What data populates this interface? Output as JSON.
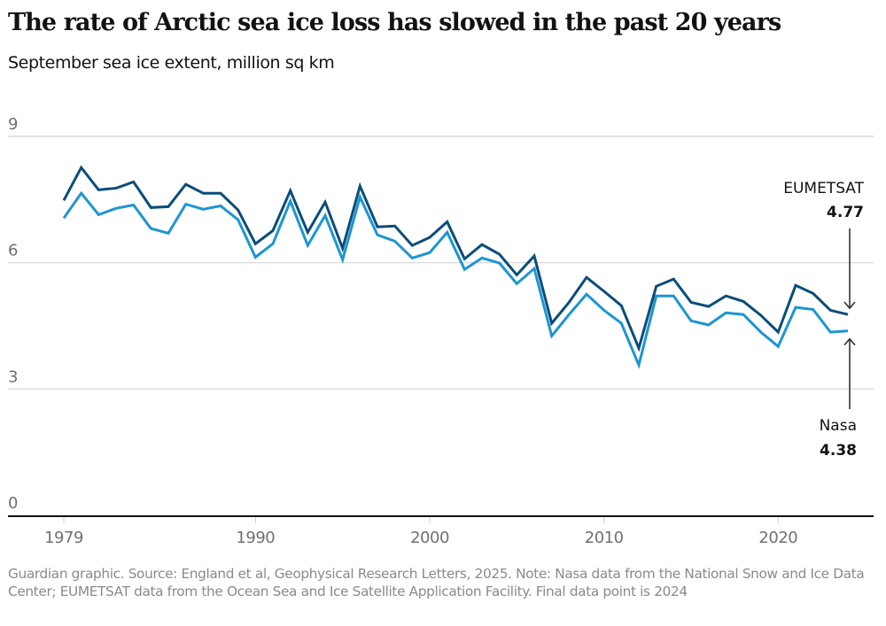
{
  "header": {
    "title": "The rate of Arctic sea ice loss has slowed in the past 20 years",
    "subtitle": "September sea ice extent, million sq km"
  },
  "footer": {
    "note": "Guardian graphic. Source: England et al, Geophysical Research Letters, 2025. Note: Nasa data from the National Snow and Ice Data Center; EUMETSAT data from the Ocean Sea and Ice Satellite Application Facility. Final data point is 2024"
  },
  "colors": {
    "eumetsat": "#0a4d7a",
    "nasa": "#1d95d1",
    "grid": "#d4d4d4",
    "axis": "#121212",
    "tick_label": "#707070"
  },
  "chart_data": {
    "type": "line",
    "title": "The rate of Arctic sea ice loss has slowed in the past 20 years",
    "subtitle": "September sea ice extent, million sq km",
    "xlabel": "",
    "ylabel": "September sea ice extent, million sq km",
    "xlim": [
      1979,
      2024
    ],
    "ylim": [
      0,
      9
    ],
    "yticks": [
      0,
      3,
      6,
      9
    ],
    "ytick_labels": [
      "0",
      "3",
      "6",
      "9"
    ],
    "xticks": [
      1979,
      1990,
      2000,
      2010,
      2020
    ],
    "xtick_labels": [
      "1979",
      "1990",
      "2000",
      "2010",
      "2020"
    ],
    "grid": true,
    "legend": "direct labels at right end",
    "x": [
      1979,
      1980,
      1981,
      1982,
      1983,
      1984,
      1985,
      1986,
      1987,
      1988,
      1989,
      1990,
      1991,
      1992,
      1993,
      1994,
      1995,
      1996,
      1997,
      1998,
      1999,
      2000,
      2001,
      2002,
      2003,
      2004,
      2005,
      2006,
      2007,
      2008,
      2009,
      2010,
      2011,
      2012,
      2013,
      2014,
      2015,
      2016,
      2017,
      2018,
      2019,
      2020,
      2021,
      2022,
      2023,
      2024
    ],
    "series": [
      {
        "name": "EUMETSAT",
        "color": "#0a4d7a",
        "values": [
          7.48,
          8.26,
          7.73,
          7.77,
          7.92,
          7.31,
          7.33,
          7.86,
          7.65,
          7.65,
          7.25,
          6.45,
          6.76,
          7.71,
          6.72,
          7.44,
          6.34,
          7.82,
          6.85,
          6.87,
          6.41,
          6.6,
          6.97,
          6.09,
          6.43,
          6.2,
          5.71,
          6.16,
          4.56,
          5.06,
          5.65,
          5.32,
          4.98,
          3.97,
          5.44,
          5.61,
          5.06,
          4.96,
          5.21,
          5.08,
          4.75,
          4.35,
          5.46,
          5.27,
          4.87,
          4.77
        ]
      },
      {
        "name": "Nasa",
        "color": "#1d95d1",
        "values": [
          7.06,
          7.65,
          7.14,
          7.29,
          7.37,
          6.81,
          6.7,
          7.39,
          7.27,
          7.35,
          7.02,
          6.13,
          6.45,
          7.46,
          6.41,
          7.12,
          6.07,
          7.56,
          6.66,
          6.51,
          6.11,
          6.24,
          6.72,
          5.84,
          6.11,
          5.99,
          5.5,
          5.86,
          4.26,
          4.77,
          5.25,
          4.87,
          4.56,
          3.57,
          5.21,
          5.21,
          4.62,
          4.52,
          4.81,
          4.77,
          4.35,
          4.01,
          4.94,
          4.89,
          4.35,
          4.38
        ]
      }
    ],
    "annotations": [
      {
        "series": "EUMETSAT",
        "label": "EUMETSAT",
        "value_label": "4.77",
        "x": 2024,
        "y": 4.77,
        "arrow": "down"
      },
      {
        "series": "Nasa",
        "label": "Nasa",
        "value_label": "4.38",
        "x": 2024,
        "y": 4.38,
        "arrow": "up"
      }
    ]
  }
}
